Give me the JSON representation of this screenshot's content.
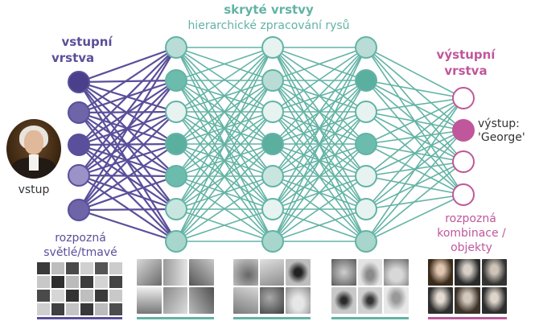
{
  "labels": {
    "hidden_title": "skryté vrstvy",
    "hidden_subtitle": "hierarchické zpracování rysů",
    "input_layer_line1": "vstupní",
    "input_layer_line2": "vrstva",
    "output_layer_line1": "výstupní",
    "output_layer_line2": "vrstva",
    "input": "vstup",
    "output_line1": "výstup:",
    "output_line2": "'George'",
    "detects_light_dark_line1": "rozpozná",
    "detects_light_dark_line2": "světlé/tmavé",
    "detects_combos_line1": "rozpozná",
    "detects_combos_line2": "kombinace /",
    "detects_combos_line3": "objekty"
  },
  "colors": {
    "input": "#5a4f9a",
    "hidden": "#63b3a5",
    "output": "#c0579b"
  },
  "layers": [
    {
      "type": "input",
      "nodes": 5,
      "fills": [
        "#4a3f8a",
        "#6e64a8",
        "#5a4f9a",
        "#9b93c8",
        "#6e64a8"
      ]
    },
    {
      "type": "hidden",
      "nodes": 7,
      "fills": [
        "#b9ddd6",
        "#6bbcad",
        "#e6f3f0",
        "#5aaf9f",
        "#6bbcad",
        "#c8e6df",
        "#a8d6cc"
      ]
    },
    {
      "type": "hidden",
      "nodes": 7,
      "fills": [
        "#e6f3f0",
        "#b9ddd6",
        "#e6f3f0",
        "#5aaf9f",
        "#c8e6df",
        "#e6f3f0",
        "#a8d6cc"
      ]
    },
    {
      "type": "hidden",
      "nodes": 7,
      "fills": [
        "#b9ddd6",
        "#5aaf9f",
        "#e6f3f0",
        "#6bbcad",
        "#e6f3f0",
        "#e6f3f0",
        "#a8d6cc"
      ]
    },
    {
      "type": "output",
      "nodes": 4,
      "fills": [
        "#ffffff",
        "#c0579b",
        "#ffffff",
        "#ffffff"
      ]
    }
  ]
}
